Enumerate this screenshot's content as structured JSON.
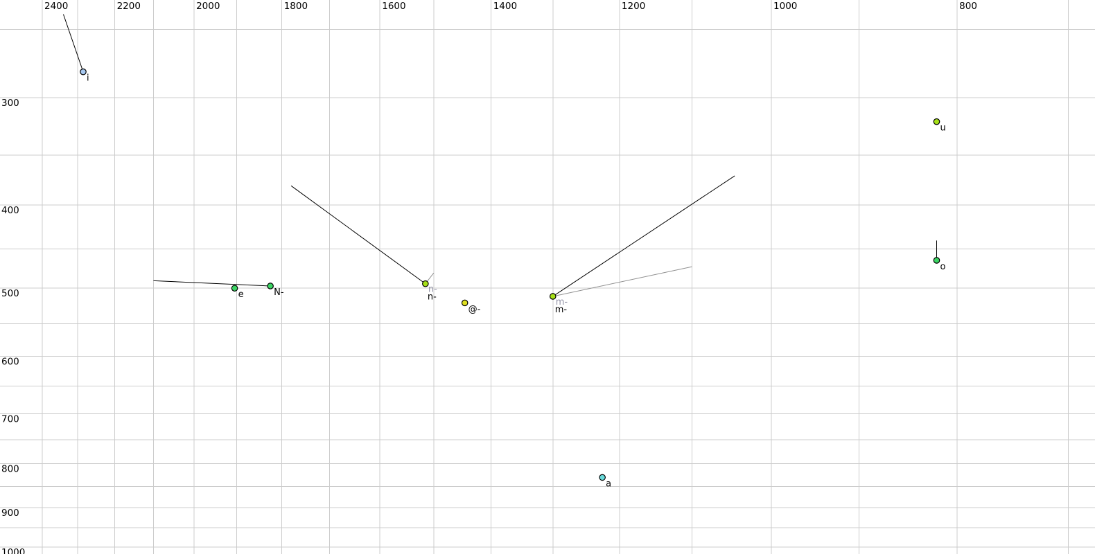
{
  "chart_data": {
    "type": "scatter",
    "title": "",
    "x_axis": {
      "scale": "log",
      "reversed": true,
      "tick_side": "top",
      "range_at_edges": [
        2525,
        678
      ],
      "grid_step_hz": 100,
      "grid_ticks": [
        2400,
        2300,
        2200,
        2100,
        2000,
        1900,
        1800,
        1700,
        1600,
        1500,
        1400,
        1300,
        1200,
        1100,
        1000,
        900,
        800,
        700
      ],
      "label_ticks": [
        "2400",
        "2200",
        "2000",
        "1800",
        "1600",
        "1400",
        "1200",
        "1000",
        "800"
      ]
    },
    "y_axis": {
      "scale": "log",
      "increases_downward": true,
      "tick_side": "left",
      "range_at_edges": [
        231,
        1019
      ],
      "grid_step_hz": 50,
      "grid_ticks": [
        250,
        300,
        350,
        400,
        450,
        500,
        550,
        600,
        650,
        700,
        750,
        800,
        850,
        900,
        950,
        1000
      ],
      "label_ticks": [
        "300",
        "400",
        "500",
        "600",
        "700",
        "800",
        "900",
        "1000"
      ]
    },
    "points": [
      {
        "label": "i",
        "f2_hz": 2285,
        "f1_hz": 280,
        "fill": "#a6c8f0",
        "double_label": false,
        "tails": [
          {
            "f2_hz": 2340,
            "f1_hz": 240,
            "color": "#000000"
          }
        ]
      },
      {
        "label": "u",
        "f2_hz": 820,
        "f1_hz": 320,
        "fill": "#a6e018",
        "double_label": false,
        "tails": []
      },
      {
        "label": "e",
        "f2_hz": 1905,
        "f1_hz": 500,
        "fill": "#3bd463",
        "double_label": false,
        "tails": []
      },
      {
        "label": "N-",
        "f2_hz": 1825,
        "f1_hz": 497,
        "fill": "#3bd463",
        "double_label": false,
        "tails": [
          {
            "f2_hz": 2100,
            "f1_hz": 490,
            "color": "#000000"
          }
        ]
      },
      {
        "label": "n-",
        "f2_hz": 1515,
        "f1_hz": 494,
        "fill": "#a6e018",
        "double_label": true,
        "tails": [
          {
            "f2_hz": 1780,
            "f1_hz": 380,
            "color": "#000000"
          },
          {
            "f2_hz": 1500,
            "f1_hz": 480,
            "color": "#909090"
          }
        ]
      },
      {
        "label": "@-",
        "f2_hz": 1445,
        "f1_hz": 520,
        "fill": "#dfe020",
        "double_label": false,
        "tails": []
      },
      {
        "label": "m-",
        "f2_hz": 1300,
        "f1_hz": 511,
        "fill": "#a6e018",
        "double_label": true,
        "tails": [
          {
            "f2_hz": 1045,
            "f1_hz": 370,
            "color": "#000000"
          },
          {
            "f2_hz": 1100,
            "f1_hz": 472,
            "color": "#909090"
          }
        ]
      },
      {
        "label": "o",
        "f2_hz": 820,
        "f1_hz": 464,
        "fill": "#3bd463",
        "double_label": false,
        "tails": [
          {
            "f2_hz": 820,
            "f1_hz": 440,
            "color": "#000000"
          }
        ]
      },
      {
        "label": "a",
        "f2_hz": 1225,
        "f1_hz": 830,
        "fill": "#68dada",
        "double_label": false,
        "tails": []
      }
    ],
    "colors": {
      "background": "#ffffff",
      "grid": "#cccccc",
      "tick_text": "#000000",
      "point_outline": "#000000",
      "point_label": "#000000",
      "secondary_label_gray": "#9494a8"
    },
    "marker": {
      "shape": "circle",
      "radius_px": 4.2
    }
  }
}
